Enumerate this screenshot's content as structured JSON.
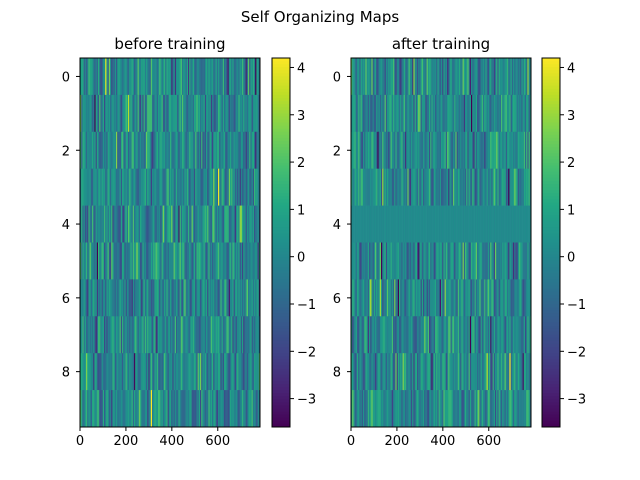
{
  "chart_data": {
    "title": "Self Organizing Maps",
    "type": "heatmap",
    "colormap": "viridis",
    "panels": [
      {
        "title": "before training",
        "rows": 10,
        "cols": 784,
        "xlim": [
          0,
          784
        ],
        "ylim": [
          9.5,
          -0.5
        ],
        "x_ticks": [
          0,
          200,
          400,
          600
        ],
        "y_ticks": [
          0,
          2,
          4,
          6,
          8
        ],
        "value_range": [
          -3.6,
          4.2
        ],
        "colorbar_ticks": [
          -3,
          -2,
          -1,
          0,
          1,
          2,
          3,
          4
        ],
        "uniform_rows": []
      },
      {
        "title": "after training",
        "rows": 10,
        "cols": 784,
        "xlim": [
          0,
          784
        ],
        "ylim": [
          9.5,
          -0.5
        ],
        "x_ticks": [
          0,
          200,
          400,
          600
        ],
        "y_ticks": [
          0,
          2,
          4,
          6,
          8
        ],
        "value_range": [
          -3.6,
          4.2
        ],
        "colorbar_ticks": [
          -3,
          -2,
          -1,
          0,
          1,
          2,
          3,
          4
        ],
        "uniform_rows": [
          4
        ]
      }
    ]
  }
}
